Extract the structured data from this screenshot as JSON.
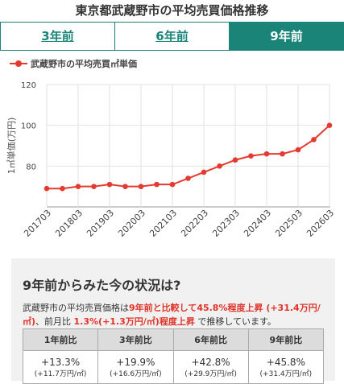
{
  "page_title": "東京都武蔵野市の平均売買価格推移",
  "tabs": [
    {
      "label": "3年前"
    },
    {
      "label": "6年前"
    },
    {
      "label": "9年前"
    }
  ],
  "active_tab": 2,
  "legend": "武蔵野市の平均売買㎡単価",
  "chart_data": {
    "type": "line",
    "ylabel": "1㎡単価(万円)",
    "ylim": [
      60,
      120
    ],
    "yticks": [
      "60",
      "80",
      "100",
      "120"
    ],
    "x_tick_labels": [
      "201703",
      "201803",
      "201903",
      "202003",
      "202103",
      "202203",
      "202303",
      "202403",
      "202503",
      "202603"
    ],
    "series_color": "#e53a2f",
    "series": [
      {
        "name": "武蔵野市の平均売買㎡単価",
        "values": [
          69,
          69,
          70,
          70,
          71,
          70,
          70,
          71,
          71,
          74,
          77,
          80,
          83,
          85,
          86,
          86,
          88,
          93,
          100
        ]
      }
    ],
    "grid": true
  },
  "summary": {
    "heading": "9年前からみた今の状況は?",
    "text_1": "武蔵野市の平均売買価格は",
    "highlight_1": "9年前と比較して45.8%程度上昇 (+31.4万円/㎡)",
    "text_2": "、前月比 ",
    "highlight_2": "1.3%(+1.3万円/㎡)程度上昇",
    "text_3": " で推移しています。"
  },
  "comparison": {
    "headers": [
      "1年前比",
      "3年前比",
      "6年前比",
      "9年前比"
    ],
    "pct": [
      "+13.3%",
      "+19.9%",
      "+42.8%",
      "+45.8%"
    ],
    "amount": [
      "(+11.7万円/㎡)",
      "(+16.6万円/㎡)",
      "(+29.9万円/㎡)",
      "(+31.4万円/㎡)"
    ]
  }
}
